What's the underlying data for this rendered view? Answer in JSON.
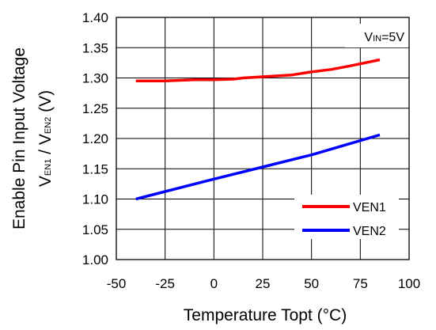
{
  "chart_data": {
    "type": "line",
    "xlabel": "Temperature Topt (°C)",
    "ylabel_line1": "Enable Pin Input Voltage",
    "ylabel_line2": {
      "v1": "V",
      "s1": "EN1",
      "mid": " / V",
      "s2": "EN2",
      "unit": " (V)"
    },
    "annotation": {
      "v": "V",
      "sub": "IN",
      "rest": "=5V"
    },
    "xlim": [
      -50,
      100
    ],
    "ylim": [
      1.0,
      1.4
    ],
    "x_ticks": [
      -50,
      -25,
      0,
      25,
      50,
      75,
      100
    ],
    "y_ticks": [
      1.0,
      1.05,
      1.1,
      1.15,
      1.2,
      1.25,
      1.3,
      1.35,
      1.4
    ],
    "x_tick_labels": [
      "-50",
      "-25",
      "0",
      "25",
      "50",
      "75",
      "100"
    ],
    "y_tick_labels": [
      "1.00",
      "1.05",
      "1.10",
      "1.15",
      "1.20",
      "1.25",
      "1.30",
      "1.35",
      "1.40"
    ],
    "grid": true,
    "legend_position": "bottom-right",
    "series": [
      {
        "name": "VEN1",
        "color": "#ff0000",
        "x": [
          -40,
          -25,
          -10,
          0,
          10,
          15,
          25,
          40,
          50,
          60,
          70,
          85
        ],
        "y": [
          1.295,
          1.295,
          1.297,
          1.297,
          1.298,
          1.3,
          1.302,
          1.305,
          1.31,
          1.314,
          1.32,
          1.33
        ]
      },
      {
        "name": "VEN2",
        "color": "#0000ff",
        "x": [
          -40,
          0,
          25,
          50,
          85
        ],
        "y": [
          1.1,
          1.133,
          1.153,
          1.173,
          1.206
        ]
      }
    ]
  }
}
